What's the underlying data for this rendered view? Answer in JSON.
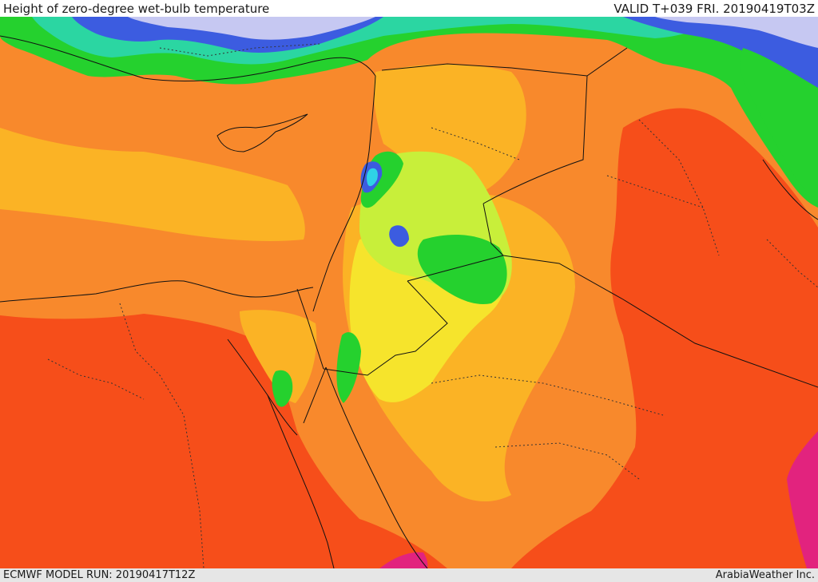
{
  "header": {
    "title": "Height of zero-degree wet-bulb temperature",
    "valid": "VALID T+039 FRI. 20190419T03Z"
  },
  "footer": {
    "model_run": "ECMWF MODEL RUN: 20190417T12Z",
    "credit": "ArabiaWeather Inc."
  },
  "colors": {
    "deep_red": "#f64e1a",
    "orange": "#f8892c",
    "light_orange": "#fbb325",
    "yellow": "#f6e42c",
    "yellow_green": "#c8ef3a",
    "green": "#25d12e",
    "teal": "#2bd6a2",
    "cyan": "#2fd2e6",
    "blue": "#3c5ce0",
    "lavender": "#c6c8f2",
    "magenta": "#e2237e",
    "border": "#111111"
  }
}
